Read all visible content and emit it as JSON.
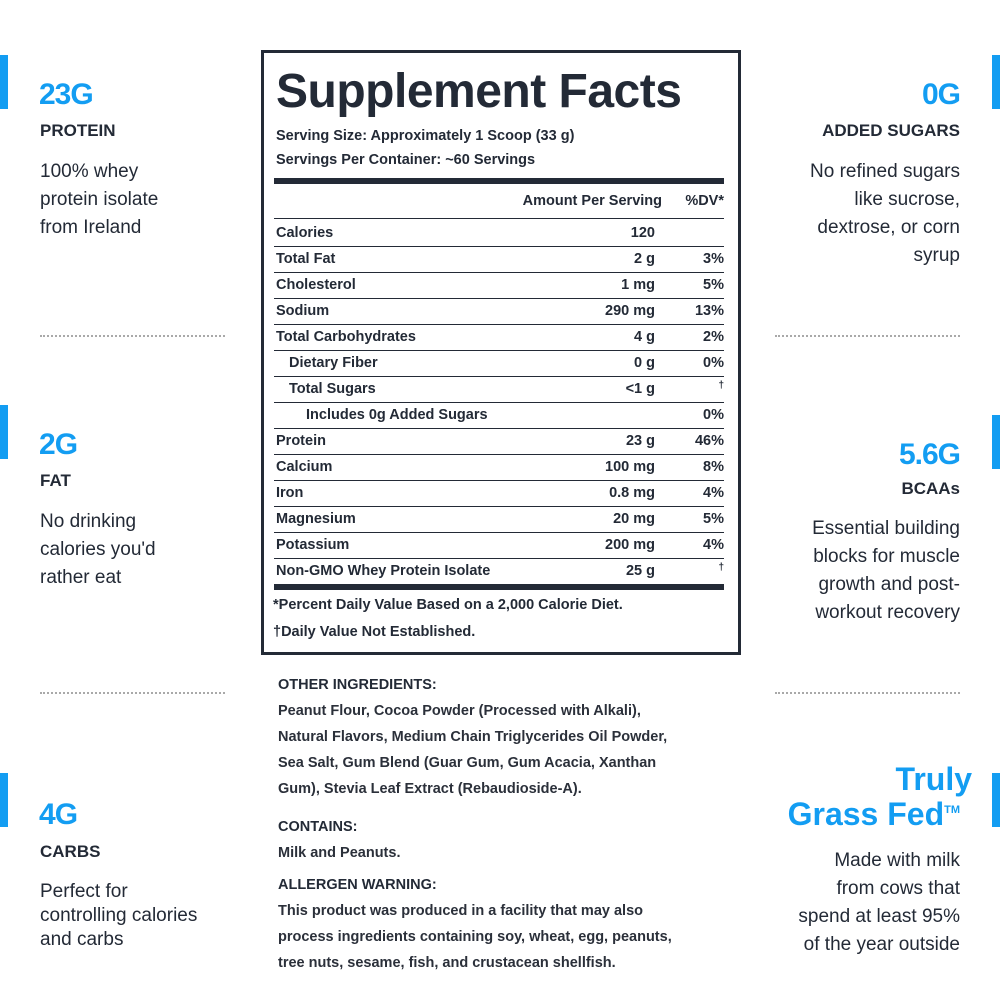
{
  "left_stats": [
    {
      "value": "23",
      "unit": "G",
      "label": "PROTEIN",
      "lines": [
        "100% whey",
        "protein isolate",
        "from Ireland"
      ]
    },
    {
      "value": "2",
      "unit": "G",
      "label": "FAT",
      "lines": [
        "No drinking",
        "calories you'd",
        "rather eat"
      ]
    },
    {
      "value": "4",
      "unit": "G",
      "label": "CARBS",
      "lines": [
        "Perfect for",
        "controlling calories",
        "and carbs"
      ]
    }
  ],
  "right_stats": [
    {
      "value": "0",
      "unit": "G",
      "label": "ADDED SUGARS",
      "lines": [
        "No refined sugars",
        "like sucrose,",
        "dextrose, or corn",
        "syrup"
      ]
    },
    {
      "value": "5.6",
      "unit": "G",
      "label": "BCAAs",
      "lines": [
        "Essential building",
        "blocks for muscle",
        "growth and post-",
        "workout recovery"
      ]
    },
    {
      "title_lines": [
        "Truly",
        "Grass Fed"
      ],
      "trademark": "TM",
      "lines": [
        "Made with milk",
        "from cows that",
        "spend at least 95%",
        "of the year outside"
      ]
    }
  ],
  "facts": {
    "title": "Supplement Facts",
    "serving_size": "Serving Size: Approximately 1 Scoop (33 g)",
    "servings_per_container": "Servings Per Container: ~60 Servings",
    "header": {
      "amount": "Amount Per Serving",
      "dv": "%DV*"
    },
    "rows": [
      {
        "name": "Calories",
        "amount": "120"
      },
      {
        "name": "Total Fat",
        "amount": "2 g",
        "dv": "3%"
      },
      {
        "name": "Cholesterol",
        "amount": "1 mg",
        "dv": "5%"
      },
      {
        "name": "Sodium",
        "amount": "290 mg",
        "dv": "13%"
      },
      {
        "name": "Total Carbohydrates",
        "amount": "4 g",
        "dv": "2%"
      },
      {
        "name": "Dietary Fiber",
        "amount": "0 g",
        "dv": "0%",
        "indent": 1
      },
      {
        "name": "Total Sugars",
        "amount": "<1 g",
        "dv": "†",
        "indent": 1
      },
      {
        "name": "Includes 0g Added Sugars",
        "dv": "0%",
        "indent": 2
      },
      {
        "name": "Protein",
        "amount": "23 g",
        "dv": "46%"
      },
      {
        "name": "Calcium",
        "amount": "100 mg",
        "dv": "8%"
      },
      {
        "name": "Iron",
        "amount": "0.8 mg",
        "dv": "4%"
      },
      {
        "name": "Magnesium",
        "amount": "20 mg",
        "dv": "5%"
      },
      {
        "name": "Potassium",
        "amount": "200 mg",
        "dv": "4%"
      },
      {
        "name": "Non-GMO Whey Protein Isolate",
        "amount": "25 g",
        "dv": "†"
      }
    ],
    "footnotes": [
      "*Percent Daily Value Based on a 2,000 Calorie Diet.",
      "†Daily Value Not Established."
    ]
  },
  "ingredients": [
    {
      "heading": "OTHER INGREDIENTS:",
      "lines": [
        "Peanut Flour, Cocoa Powder (Processed with Alkali),",
        "Natural Flavors, Medium Chain Triglycerides Oil Powder,",
        "Sea Salt, Gum Blend (Guar Gum, Gum Acacia, Xanthan",
        "Gum), Stevia Leaf Extract (Rebaudioside-A)."
      ]
    },
    {
      "heading": "CONTAINS:",
      "lines": [
        "Milk and Peanuts."
      ]
    },
    {
      "heading": "ALLERGEN WARNING:",
      "lines": [
        "This product was produced in a facility that may also",
        "process ingredients containing soy, wheat, egg, peanuts,",
        "tree nuts, sesame, fish, and crustacean shellfish."
      ]
    }
  ]
}
